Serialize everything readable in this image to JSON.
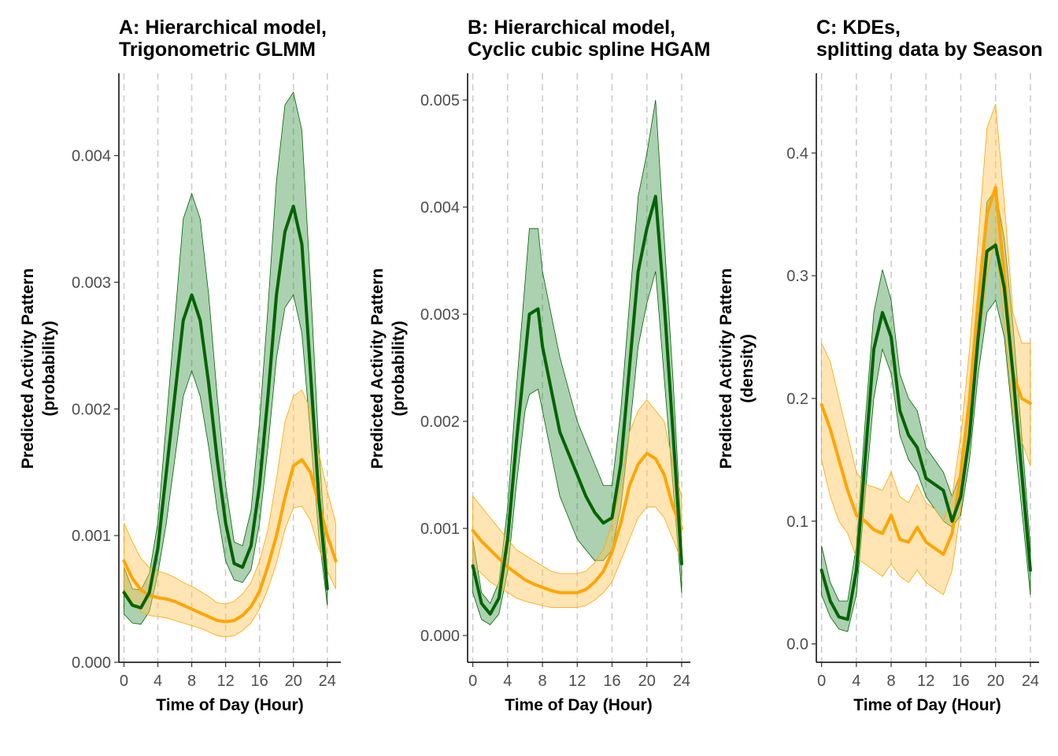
{
  "colors": {
    "green": "#006400",
    "green_fill": "#2e8b3a",
    "orange": "#ffa500",
    "orange_fill": "#ffc658",
    "grid": "#cccccc"
  },
  "chart_data": [
    {
      "type": "line",
      "title_line1": "A: Hierarchical model,",
      "title_line2": "Trigonometric GLMM",
      "xlabel": "Time of Day (Hour)",
      "ylabel_line1": "Predicted Activity Pattern",
      "ylabel_line2": "(probability)",
      "xlim": [
        -0.6,
        25.6
      ],
      "ylim": [
        0,
        0.00465
      ],
      "x_ticks": [
        0,
        4,
        8,
        12,
        16,
        20,
        24
      ],
      "y_ticks": [
        0,
        0.001,
        0.002,
        0.003,
        0.004
      ],
      "y_tick_labels": [
        "0.000",
        "0.001",
        "0.002",
        "0.003",
        "0.004"
      ],
      "vgrid": [
        0,
        4,
        8,
        12,
        16,
        20,
        24
      ],
      "series": [
        {
          "color": "green",
          "x": [
            0,
            1,
            2,
            3,
            4,
            5,
            6,
            7,
            8,
            9,
            10,
            11,
            12,
            13,
            14,
            15,
            16,
            17,
            18,
            19,
            20,
            21,
            22,
            23,
            24
          ],
          "y": [
            0.00055,
            0.00045,
            0.00043,
            0.00055,
            0.0009,
            0.0015,
            0.0021,
            0.0027,
            0.0029,
            0.0027,
            0.0022,
            0.0016,
            0.0011,
            0.00078,
            0.00075,
            0.00092,
            0.0014,
            0.0021,
            0.0029,
            0.0034,
            0.0036,
            0.0033,
            0.0023,
            0.0013,
            0.00058
          ],
          "lower": [
            0.00038,
            0.00031,
            0.0003,
            0.0004,
            0.0007,
            0.0011,
            0.0016,
            0.0021,
            0.0023,
            0.0021,
            0.0017,
            0.0012,
            0.0008,
            0.00065,
            0.00063,
            0.00073,
            0.0011,
            0.0017,
            0.0024,
            0.0028,
            0.0029,
            0.0026,
            0.0018,
            0.001,
            0.00045
          ],
          "upper": [
            0.00075,
            0.00058,
            0.00057,
            0.0007,
            0.0011,
            0.0019,
            0.0027,
            0.0035,
            0.0037,
            0.0035,
            0.0029,
            0.0021,
            0.0014,
            0.00095,
            0.00092,
            0.0012,
            0.0019,
            0.0028,
            0.0038,
            0.0044,
            0.0045,
            0.0042,
            0.003,
            0.0017,
            0.00072
          ]
        },
        {
          "color": "orange",
          "x": [
            0,
            1,
            2,
            3,
            4,
            5,
            6,
            7,
            8,
            9,
            10,
            11,
            12,
            13,
            14,
            15,
            16,
            17,
            18,
            19,
            20,
            21,
            22,
            23,
            24,
            25
          ],
          "y": [
            0.0008,
            0.00066,
            0.00057,
            0.00053,
            0.00051,
            0.0005,
            0.00048,
            0.00045,
            0.00042,
            0.00039,
            0.00036,
            0.00033,
            0.00032,
            0.00033,
            0.00037,
            0.00044,
            0.00056,
            0.00076,
            0.001,
            0.0013,
            0.00155,
            0.0016,
            0.0015,
            0.00125,
            0.001,
            0.0008
          ],
          "lower": [
            0.00058,
            0.00047,
            0.0004,
            0.00037,
            0.00036,
            0.00035,
            0.00033,
            0.00031,
            0.00029,
            0.00027,
            0.00024,
            0.00021,
            0.0002,
            0.00021,
            0.00025,
            0.00031,
            0.00042,
            0.00058,
            0.00078,
            0.00105,
            0.00122,
            0.00123,
            0.00112,
            0.0009,
            0.00072,
            0.00058
          ],
          "upper": [
            0.0011,
            0.00095,
            0.00082,
            0.00075,
            0.00072,
            0.0007,
            0.00067,
            0.00063,
            0.0006,
            0.00056,
            0.00052,
            0.00047,
            0.00046,
            0.00048,
            0.00054,
            0.00063,
            0.0008,
            0.00105,
            0.00145,
            0.0019,
            0.0021,
            0.00215,
            0.002,
            0.00165,
            0.00135,
            0.0011
          ]
        }
      ]
    },
    {
      "type": "line",
      "title_line1": "B: Hierarchical model,",
      "title_line2": "Cyclic cubic spline HGAM",
      "xlabel": "Time of Day (Hour)",
      "ylabel_line1": "Predicted Activity Pattern",
      "ylabel_line2": "(probability)",
      "xlim": [
        -0.6,
        25.0
      ],
      "ylim": [
        -0.00025,
        0.00525
      ],
      "x_ticks": [
        0,
        4,
        8,
        12,
        16,
        20,
        24
      ],
      "y_ticks": [
        0,
        0.001,
        0.002,
        0.003,
        0.004,
        0.005
      ],
      "y_tick_labels": [
        "0.000",
        "0.001",
        "0.002",
        "0.003",
        "0.004",
        "0.005"
      ],
      "vgrid": [
        0,
        4,
        8,
        12,
        16,
        20,
        24
      ],
      "series": [
        {
          "color": "green",
          "x": [
            0,
            1,
            2,
            3,
            4,
            5,
            6,
            6.5,
            7.5,
            8,
            9,
            10,
            11,
            12,
            13,
            14,
            15,
            16,
            17,
            18,
            19,
            20,
            21,
            22,
            23,
            24
          ],
          "y": [
            0.00065,
            0.0003,
            0.0002,
            0.00035,
            0.0009,
            0.0018,
            0.0026,
            0.003,
            0.00305,
            0.0027,
            0.0023,
            0.0019,
            0.0017,
            0.0015,
            0.0013,
            0.00115,
            0.00105,
            0.0011,
            0.0016,
            0.0025,
            0.0034,
            0.0038,
            0.0041,
            0.0031,
            0.0019,
            0.00067
          ],
          "lower": [
            0.0004,
            0.00015,
            0.0001,
            0.0002,
            0.0006,
            0.0014,
            0.0021,
            0.00225,
            0.0023,
            0.0021,
            0.0017,
            0.0013,
            0.0011,
            0.0009,
            0.0008,
            0.0007,
            0.0007,
            0.0008,
            0.0012,
            0.0019,
            0.0027,
            0.0031,
            0.0034,
            0.0024,
            0.0014,
            0.0004
          ],
          "upper": [
            0.0009,
            0.0004,
            0.0003,
            0.0005,
            0.0012,
            0.0023,
            0.0033,
            0.0038,
            0.0038,
            0.0034,
            0.003,
            0.0026,
            0.0023,
            0.002,
            0.0018,
            0.0016,
            0.0014,
            0.0014,
            0.0021,
            0.0031,
            0.0041,
            0.0045,
            0.005,
            0.0037,
            0.0024,
            0.0009
          ]
        },
        {
          "color": "orange",
          "x": [
            0,
            1,
            2,
            3,
            4,
            5,
            6,
            7,
            8,
            9,
            10,
            11,
            12,
            13,
            14,
            15,
            16,
            17,
            18,
            19,
            20,
            21,
            22,
            23,
            24
          ],
          "y": [
            0.00098,
            0.00088,
            0.0008,
            0.00072,
            0.00064,
            0.00058,
            0.00052,
            0.00048,
            0.00045,
            0.00042,
            0.0004,
            0.0004,
            0.0004,
            0.00043,
            0.0005,
            0.0006,
            0.00078,
            0.00105,
            0.0014,
            0.0016,
            0.0017,
            0.00165,
            0.0015,
            0.0012,
            0.001
          ],
          "lower": [
            0.00065,
            0.00058,
            0.0005,
            0.00045,
            0.0004,
            0.00035,
            0.00032,
            0.0003,
            0.00028,
            0.00026,
            0.00026,
            0.00026,
            0.00026,
            0.00028,
            0.00033,
            0.0004,
            0.0005,
            0.0007,
            0.0009,
            0.0011,
            0.0012,
            0.0012,
            0.0011,
            0.0009,
            0.0007
          ],
          "upper": [
            0.0013,
            0.0012,
            0.0011,
            0.001,
            0.0009,
            0.0008,
            0.00075,
            0.0007,
            0.00065,
            0.0006,
            0.00058,
            0.00058,
            0.00058,
            0.0006,
            0.00068,
            0.0008,
            0.00105,
            0.0014,
            0.0019,
            0.0021,
            0.0022,
            0.0021,
            0.002,
            0.0016,
            0.0013
          ]
        }
      ]
    },
    {
      "type": "line",
      "title_line1": "C: KDEs,",
      "title_line2": "splitting data by Season",
      "xlabel": "Time of Day (Hour)",
      "ylabel_line1": "Predicted Activity Pattern",
      "ylabel_line2": "(density)",
      "xlim": [
        -0.6,
        25.0
      ],
      "ylim": [
        -0.015,
        0.465
      ],
      "x_ticks": [
        0,
        4,
        8,
        12,
        16,
        20,
        24
      ],
      "y_ticks": [
        0,
        0.1,
        0.2,
        0.3,
        0.4
      ],
      "y_tick_labels": [
        "0.0",
        "0.1",
        "0.2",
        "0.3",
        "0.4"
      ],
      "vgrid": [
        0,
        4,
        8,
        12,
        16,
        20,
        24
      ],
      "series": [
        {
          "color": "green",
          "x": [
            0,
            1,
            2,
            3,
            4,
            5,
            6,
            7,
            8,
            9,
            10,
            11,
            12,
            13,
            14,
            15,
            16,
            17,
            18,
            19,
            20,
            21,
            22,
            23,
            24
          ],
          "y": [
            0.06,
            0.035,
            0.022,
            0.02,
            0.06,
            0.15,
            0.24,
            0.27,
            0.25,
            0.19,
            0.17,
            0.16,
            0.135,
            0.13,
            0.125,
            0.1,
            0.12,
            0.17,
            0.25,
            0.32,
            0.325,
            0.29,
            0.22,
            0.14,
            0.06
          ],
          "lower": [
            0.04,
            0.022,
            0.012,
            0.01,
            0.04,
            0.12,
            0.2,
            0.24,
            0.22,
            0.17,
            0.15,
            0.14,
            0.12,
            0.11,
            0.1,
            0.095,
            0.105,
            0.15,
            0.22,
            0.27,
            0.28,
            0.25,
            0.18,
            0.11,
            0.04
          ],
          "upper": [
            0.08,
            0.05,
            0.035,
            0.035,
            0.08,
            0.18,
            0.27,
            0.305,
            0.28,
            0.22,
            0.2,
            0.19,
            0.16,
            0.15,
            0.14,
            0.12,
            0.14,
            0.19,
            0.28,
            0.36,
            0.37,
            0.33,
            0.26,
            0.17,
            0.08
          ]
        },
        {
          "color": "orange",
          "x": [
            0,
            1,
            2,
            3,
            4,
            5,
            6,
            7,
            8,
            9,
            10,
            11,
            12,
            13,
            14,
            15,
            16,
            17,
            18,
            19,
            20,
            21,
            22,
            23,
            24
          ],
          "y": [
            0.195,
            0.175,
            0.15,
            0.125,
            0.105,
            0.1,
            0.093,
            0.09,
            0.105,
            0.085,
            0.083,
            0.095,
            0.083,
            0.078,
            0.073,
            0.09,
            0.14,
            0.2,
            0.28,
            0.35,
            0.372,
            0.3,
            0.22,
            0.2,
            0.196
          ],
          "lower": [
            0.15,
            0.12,
            0.1,
            0.09,
            0.07,
            0.065,
            0.06,
            0.055,
            0.065,
            0.055,
            0.05,
            0.06,
            0.05,
            0.045,
            0.04,
            0.06,
            0.11,
            0.17,
            0.24,
            0.3,
            0.33,
            0.26,
            0.19,
            0.165,
            0.145
          ],
          "upper": [
            0.245,
            0.23,
            0.2,
            0.17,
            0.14,
            0.13,
            0.128,
            0.125,
            0.14,
            0.12,
            0.115,
            0.13,
            0.115,
            0.11,
            0.1,
            0.12,
            0.17,
            0.24,
            0.33,
            0.42,
            0.44,
            0.36,
            0.27,
            0.245,
            0.245
          ]
        }
      ]
    }
  ]
}
